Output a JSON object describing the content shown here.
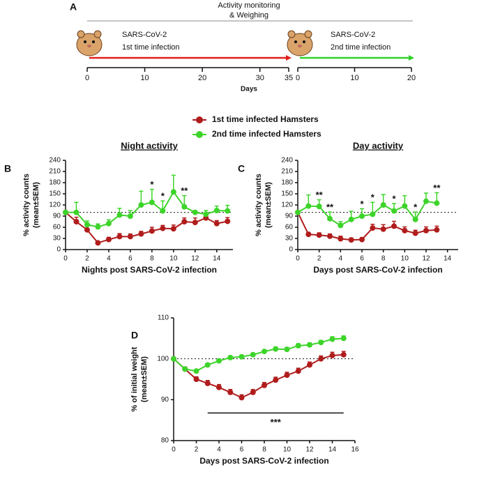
{
  "timeline": {
    "label": "A",
    "title": [
      "Activity monitoring",
      "& Weighing"
    ],
    "xlabel": "Days",
    "segments": [
      {
        "label": [
          "SARS-CoV-2",
          "1st time infection"
        ],
        "color": "#e0201b",
        "xlim": [
          0,
          35
        ],
        "xticks": [
          0,
          10,
          20,
          30,
          35
        ]
      },
      {
        "label": [
          "SARS-CoV-2",
          "2nd time infection"
        ],
        "color": "#2fd12a",
        "xlim": [
          0,
          20
        ],
        "xticks": [
          0,
          10,
          20
        ]
      }
    ]
  },
  "chart_data": [
    {
      "type": "line",
      "label": "B",
      "title": "Night activity",
      "xlabel": "Nights post SARS-CoV-2 infection",
      "ylabel": [
        "% activity counts",
        "(mean±SEM)"
      ],
      "xlim": [
        0,
        15.5
      ],
      "xticks": [
        0,
        2,
        4,
        6,
        8,
        10,
        12,
        14
      ],
      "ylim": [
        0,
        240
      ],
      "yticks": [
        0,
        30,
        60,
        90,
        120,
        150,
        180,
        210,
        240
      ],
      "refline": 100,
      "x": [
        0,
        1,
        2,
        3,
        4,
        5,
        6,
        7,
        8,
        9,
        10,
        11,
        12,
        13,
        14,
        15
      ],
      "series": [
        {
          "name": "1st time infected Hamsters",
          "color": "#b01c1c",
          "values": [
            100,
            75,
            53,
            18,
            27,
            35,
            35,
            42,
            50,
            57,
            56,
            75,
            73,
            85,
            70,
            76
          ],
          "errors": [
            0,
            12,
            10,
            3,
            6,
            8,
            7,
            7,
            10,
            8,
            10,
            10,
            12,
            8,
            8,
            10
          ]
        },
        {
          "name": "2nd time infected Hamsters",
          "color": "#3dd42a",
          "values": [
            100,
            100,
            67,
            61,
            70,
            93,
            90,
            120,
            127,
            104,
            155,
            115,
            100,
            95,
            105,
            104
          ],
          "errors": [
            0,
            27,
            10,
            8,
            10,
            18,
            15,
            37,
            35,
            27,
            45,
            30,
            5,
            10,
            12,
            15
          ]
        }
      ],
      "annotations": [
        {
          "text": "*",
          "x": 8
        },
        {
          "text": "*",
          "x": 9
        },
        {
          "text": "**",
          "x": 11
        }
      ]
    },
    {
      "type": "line",
      "label": "C",
      "title": "Day activity",
      "xlabel": "Days post SARS-CoV-2 infection",
      "ylabel": [
        "% activity counts",
        "(mean±SEM)"
      ],
      "xlim": [
        0,
        15
      ],
      "xticks": [
        0,
        2,
        4,
        6,
        8,
        10,
        12,
        14
      ],
      "ylim": [
        0,
        240
      ],
      "yticks": [
        0,
        30,
        60,
        90,
        120,
        150,
        180,
        210,
        240
      ],
      "refline": 100,
      "x": [
        0,
        1,
        2,
        3,
        4,
        5,
        6,
        7,
        8,
        9,
        10,
        11,
        12,
        13
      ],
      "series": [
        {
          "color": "#b01c1c",
          "values": [
            100,
            41,
            39,
            36,
            29,
            26,
            27,
            58,
            55,
            63,
            51,
            44,
            51,
            53
          ],
          "errors": [
            0,
            5,
            6,
            6,
            7,
            5,
            5,
            10,
            12,
            13,
            10,
            8,
            10,
            10
          ]
        },
        {
          "color": "#3dd42a",
          "values": [
            100,
            117,
            116,
            83,
            65,
            81,
            90,
            95,
            120,
            104,
            117,
            81,
            130,
            125
          ],
          "errors": [
            0,
            30,
            18,
            18,
            10,
            22,
            20,
            32,
            28,
            20,
            28,
            20,
            22,
            28
          ]
        }
      ],
      "annotations": [
        {
          "text": "**",
          "x": 2
        },
        {
          "text": "**",
          "x": 3
        },
        {
          "text": "*",
          "x": 6
        },
        {
          "text": "*",
          "x": 7
        },
        {
          "text": "*",
          "x": 9
        },
        {
          "text": "*",
          "x": 11
        },
        {
          "text": "**",
          "x": 13
        }
      ]
    },
    {
      "type": "line",
      "label": "D",
      "xlabel": "Days post SARS-CoV-2 infection",
      "ylabel": [
        "% of initial weight",
        "(mean±SEM)"
      ],
      "xlim": [
        0,
        16
      ],
      "xticks": [
        0,
        2,
        4,
        6,
        8,
        10,
        12,
        14,
        16
      ],
      "ylim": [
        80,
        110
      ],
      "yticks": [
        80,
        90,
        100,
        110
      ],
      "refline": 100,
      "x": [
        0,
        1,
        2,
        3,
        4,
        5,
        6,
        7,
        8,
        9,
        10,
        11,
        12,
        13,
        14,
        15
      ],
      "series": [
        {
          "color": "#b01c1c",
          "values": [
            100,
            97.5,
            95,
            94,
            93,
            91.8,
            90.5,
            91.8,
            93.5,
            94.8,
            96,
            97,
            98.5,
            100,
            100.8,
            101
          ],
          "errors": [
            0,
            0.5,
            0.6,
            0.7,
            0.7,
            0.7,
            0.7,
            0.7,
            0.7,
            0.7,
            0.7,
            0.7,
            0.7,
            0.7,
            0.8,
            0.8
          ]
        },
        {
          "color": "#3dd42a",
          "values": [
            100,
            97.5,
            97,
            98.5,
            99.5,
            100.3,
            100.5,
            101,
            101.8,
            102.4,
            102.3,
            103.2,
            103.4,
            104,
            104.8,
            105
          ],
          "errors": [
            0,
            0.4,
            0.4,
            0.4,
            0.4,
            0.4,
            0.4,
            0.4,
            0.4,
            0.5,
            0.5,
            0.5,
            0.5,
            0.5,
            0.6,
            0.6
          ]
        }
      ],
      "annotations": [
        {
          "text": "***",
          "x": [
            3,
            15
          ]
        }
      ]
    }
  ]
}
